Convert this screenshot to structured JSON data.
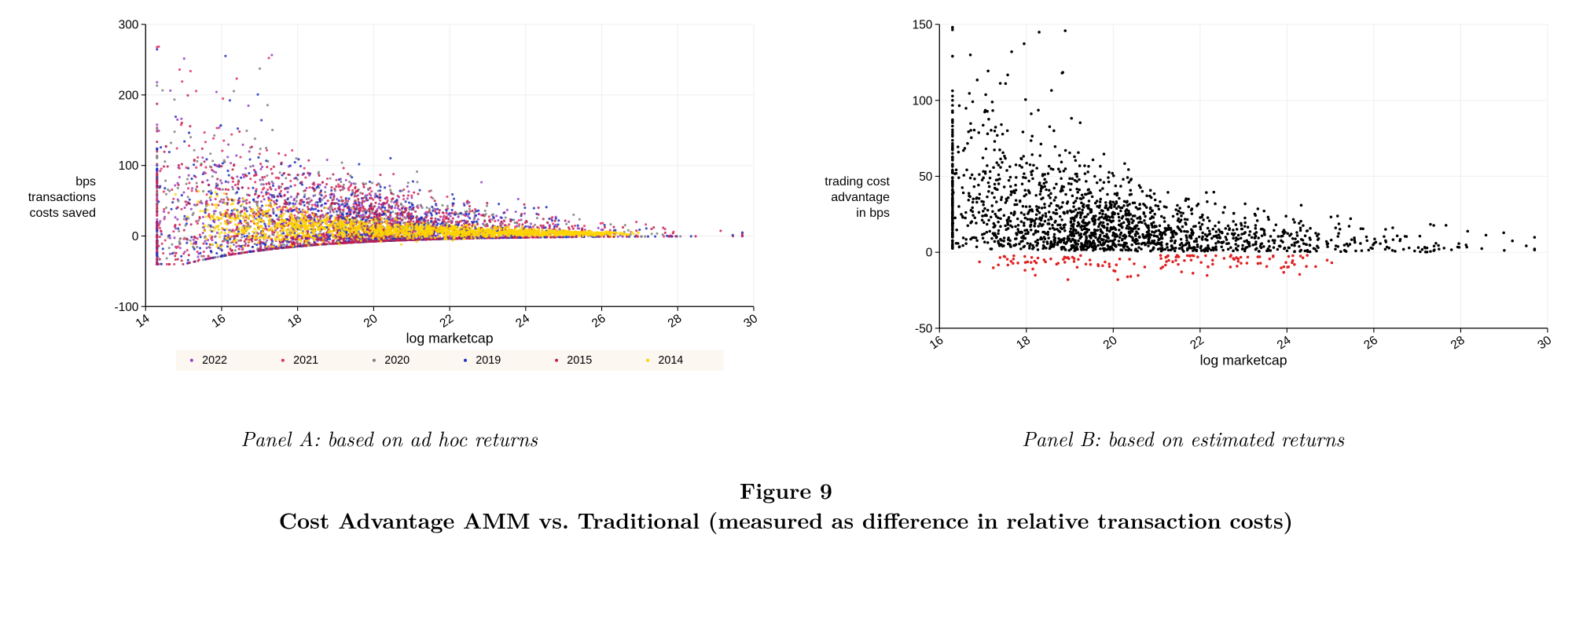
{
  "figure": {
    "number_label": "Figure 9",
    "title": "Cost Advantage AMM vs. Traditional (measured as difference in relative transaction costs)"
  },
  "panelA": {
    "caption": "Panel A: based on ad hoc returns",
    "type": "scatter",
    "xlabel": "log marketcap",
    "ylabel": "bps\ntransactions\ncosts saved",
    "xlim": [
      14,
      30
    ],
    "ylim": [
      -100,
      300
    ],
    "xticks": [
      14,
      16,
      18,
      20,
      22,
      24,
      26,
      28,
      30
    ],
    "yticks": [
      -100,
      0,
      100,
      200,
      300
    ],
    "xtick_rotation": 35,
    "background_color": "#ffffff",
    "grid_color": "#f0f0f0",
    "axis_color": "#000000",
    "tick_fontsize": 14,
    "label_fontsize": 16,
    "marker_size": 1.4,
    "series": [
      {
        "label": "2022",
        "color": "#9641c4",
        "n": 900
      },
      {
        "label": "2021",
        "color": "#e03060",
        "n": 900
      },
      {
        "label": "2020",
        "color": "#808080",
        "n": 900
      },
      {
        "label": "2019",
        "color": "#2030c0",
        "n": 900
      },
      {
        "label": "2015",
        "color": "#c02050",
        "n": 900
      },
      {
        "label": "2014",
        "color": "#ffd400",
        "n": 1600
      }
    ],
    "cloud": {
      "x_center": 18.0,
      "x_spread_main": 2.4,
      "x_tail_end": 28.5,
      "y_peak": 110,
      "y_floor": -40,
      "decay": 0.55
    },
    "legend_background": "#fdf7f2",
    "legend_fontsize": 13
  },
  "panelB": {
    "caption": "Panel B: based on estimated returns",
    "type": "scatter",
    "xlabel": "log marketcap",
    "ylabel": "trading cost\nadvantage\nin bps",
    "xlim": [
      16,
      30
    ],
    "ylim": [
      -50,
      150
    ],
    "xticks": [
      16,
      18,
      20,
      22,
      24,
      26,
      28,
      30
    ],
    "yticks": [
      -50,
      0,
      50,
      100,
      150
    ],
    "xtick_rotation": 35,
    "background_color": "#ffffff",
    "grid_color": "#f0f0f0",
    "axis_color": "#000000",
    "tick_fontsize": 14,
    "label_fontsize": 16,
    "marker_size": 1.6,
    "series_pos": {
      "color": "#000000",
      "n": 1800
    },
    "series_neg": {
      "color": "#e02020",
      "n": 140
    },
    "cloud": {
      "x_center": 18.5,
      "x_spread_main": 1.8,
      "x_tail_end": 29.0,
      "y_peak": 85,
      "decay": 0.6,
      "neg_floor": -18
    }
  }
}
